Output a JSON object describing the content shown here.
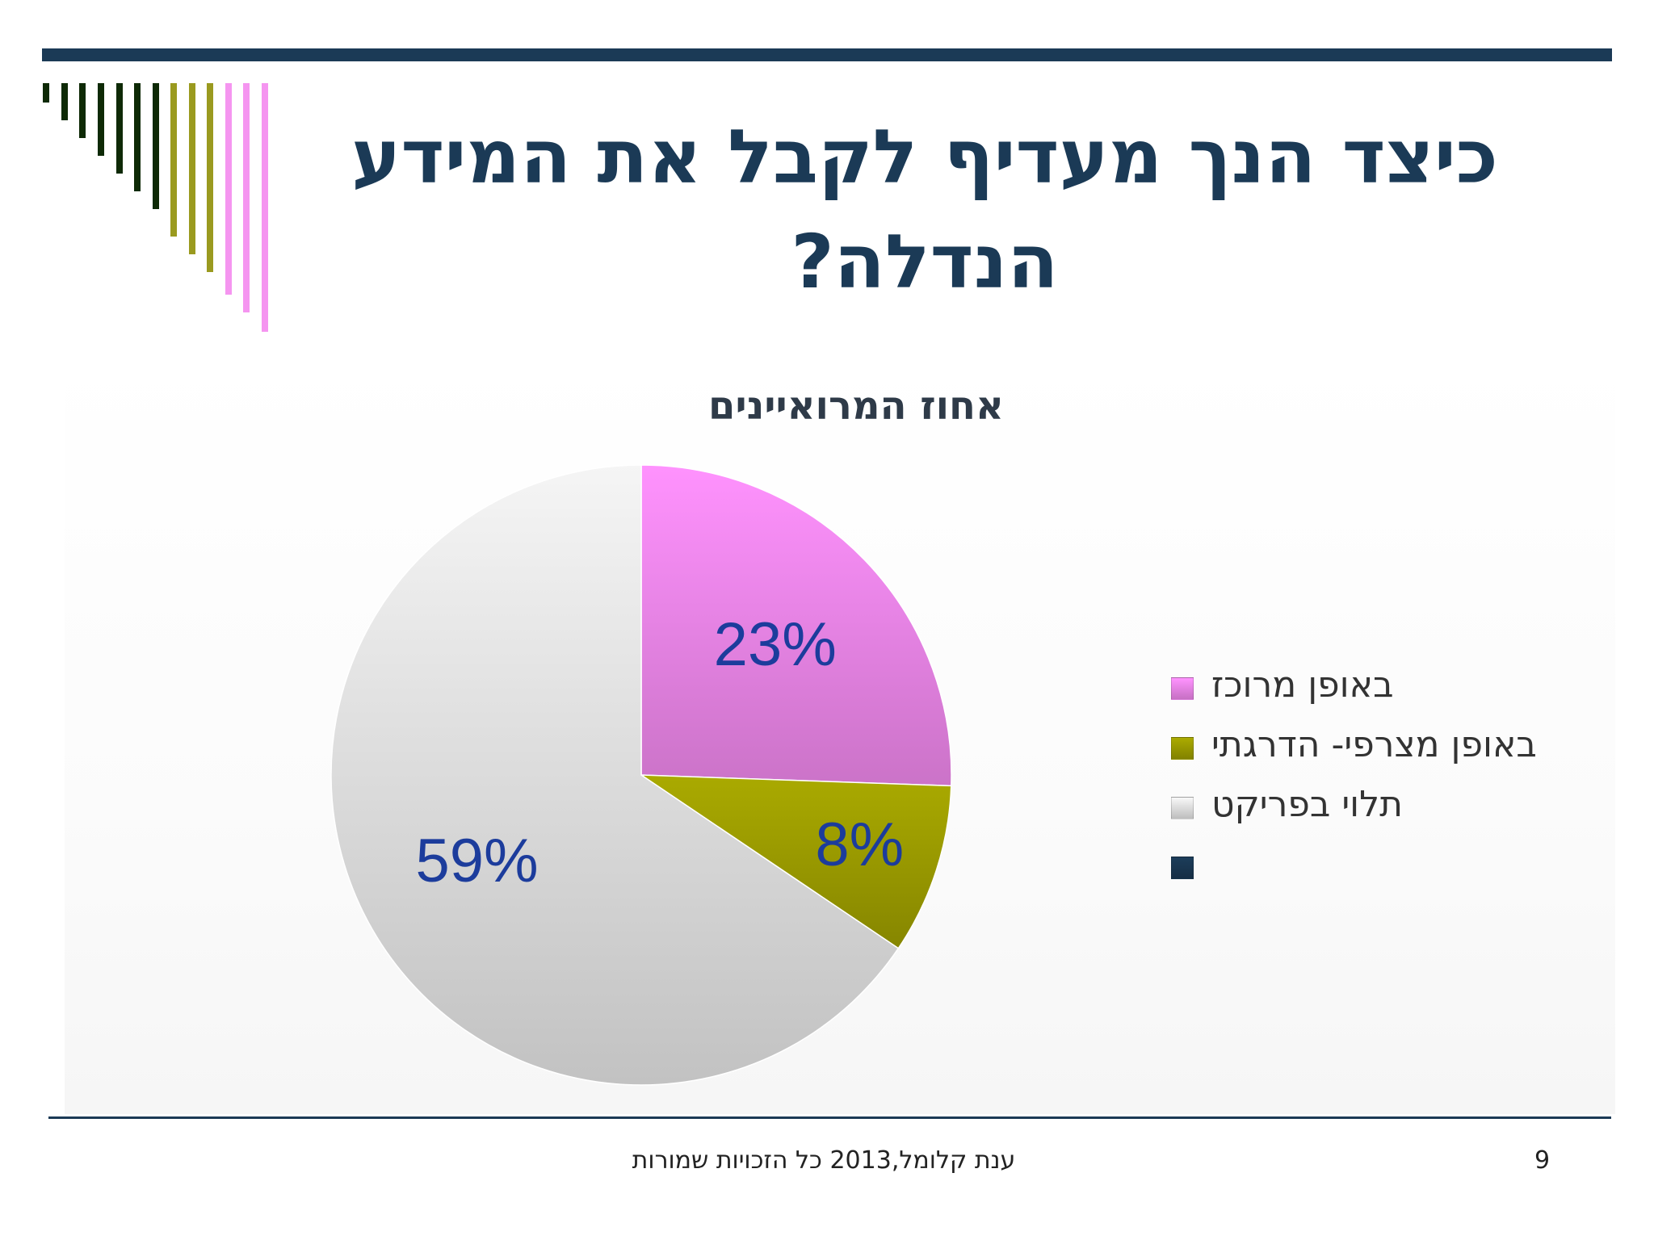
{
  "slide": {
    "title_line1": "כיצד הנך מעדיף לקבל את המידע",
    "title_line2": "הנדלה?",
    "footer": "ענת קלומל,2013 כל הזכויות שמורות",
    "page_number": "9",
    "accent_color": "#1b3a56",
    "decoration_colors": [
      "#0e2a06",
      "#9a9a1f",
      "#f595f0"
    ]
  },
  "chart_data": {
    "type": "pie",
    "title": "אחוז המרואיינים",
    "categories": [
      "באופן מרוכז",
      "באופן מצרפי- הדרגתי",
      "תלוי בפריקט",
      ""
    ],
    "values": [
      23,
      8,
      59,
      0
    ],
    "value_labels": [
      "23%",
      "8%",
      "59%",
      ""
    ],
    "colors": [
      "#f78cf4",
      "#a3a300",
      "#ececec",
      "#1b3a56"
    ],
    "legend_position": "right",
    "start_angle_deg": 0,
    "direction": "clockwise"
  }
}
